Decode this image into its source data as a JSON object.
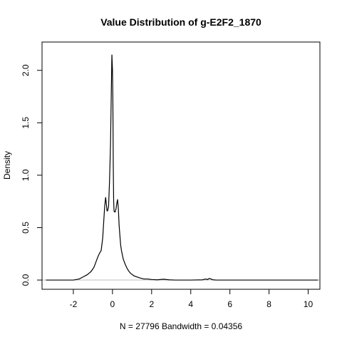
{
  "chart_data": {
    "type": "line",
    "title": "Value Distribution of g-E2F2_1870",
    "xlabel": "N = 27796   Bandwidth = 0.04356",
    "ylabel": "Density",
    "xlim": [
      -3.6,
      10.6
    ],
    "ylim": [
      -0.088,
      2.27
    ],
    "x_ticks": [
      "-2",
      "0",
      "2",
      "4",
      "6",
      "8",
      "10"
    ],
    "y_ticks": [
      "0.0",
      "0.5",
      "1.0",
      "1.5",
      "2.0"
    ],
    "baseline": 0,
    "series": [
      {
        "x": [
          -3.4,
          -2.0,
          -1.7,
          -1.5,
          -1.3,
          -1.1,
          -0.95,
          -0.85,
          -0.75,
          -0.65,
          -0.58,
          -0.5,
          -0.45,
          -0.4,
          -0.35,
          -0.3,
          -0.28,
          -0.25,
          -0.2,
          -0.15,
          -0.1,
          -0.06,
          -0.03,
          0.0,
          0.02,
          0.04,
          0.06,
          0.08,
          0.1,
          0.14,
          0.18,
          0.22,
          0.26,
          0.3,
          0.34,
          0.38,
          0.42,
          0.46,
          0.55,
          0.65,
          0.75,
          0.85,
          0.95,
          1.1,
          1.25,
          1.4,
          1.6,
          1.8,
          2.0,
          2.3,
          2.6,
          2.9,
          3.2,
          4.0,
          4.6,
          4.75,
          4.85,
          4.95,
          5.05,
          5.15,
          5.3,
          6.0,
          8.0,
          10.5
        ],
        "y": [
          0.0,
          0.0,
          0.01,
          0.03,
          0.05,
          0.08,
          0.12,
          0.17,
          0.22,
          0.26,
          0.28,
          0.4,
          0.55,
          0.7,
          0.79,
          0.7,
          0.66,
          0.66,
          0.7,
          0.95,
          1.3,
          1.8,
          2.15,
          2.0,
          1.7,
          1.1,
          0.75,
          0.66,
          0.65,
          0.65,
          0.68,
          0.73,
          0.77,
          0.68,
          0.52,
          0.42,
          0.33,
          0.28,
          0.2,
          0.15,
          0.11,
          0.08,
          0.06,
          0.04,
          0.03,
          0.02,
          0.01,
          0.01,
          0.005,
          0.002,
          0.008,
          0.002,
          0.0,
          0.0,
          0.002,
          0.01,
          0.005,
          0.015,
          0.008,
          0.002,
          0.0,
          0.0,
          0.0,
          0.0
        ]
      }
    ]
  }
}
